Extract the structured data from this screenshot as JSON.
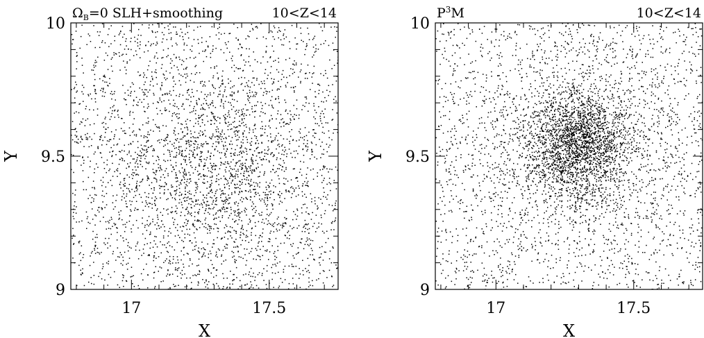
{
  "chart_data": [
    {
      "type": "scatter",
      "title_left": "Ω",
      "title_left_subscript": "B",
      "title_left_rest": "=0  SLH+smoothing",
      "title_right": "10<Z<14",
      "xlabel": "X",
      "ylabel": "Y",
      "xlim": [
        16.78,
        17.75
      ],
      "ylim": [
        9,
        10
      ],
      "xticks": [
        17,
        17.5
      ],
      "xtick_labels": [
        "17",
        "17.5"
      ],
      "yticks": [
        9,
        9.5,
        10
      ],
      "ytick_labels": [
        "9",
        "9.5",
        "10"
      ],
      "distribution": {
        "background_points": 2200,
        "cluster_points": 1500,
        "cluster_center": [
          17.3,
          9.45
        ],
        "cluster_sigma": [
          0.2,
          0.19
        ]
      }
    },
    {
      "type": "scatter",
      "title_left": "P",
      "title_left_superscript": "3",
      "title_left_rest": "M",
      "title_right": "10<Z<14",
      "xlabel": "X",
      "ylabel": "Y",
      "xlim": [
        16.78,
        17.75
      ],
      "ylim": [
        9,
        10
      ],
      "xticks": [
        17,
        17.5
      ],
      "xtick_labels": [
        "17",
        "17.5"
      ],
      "yticks": [
        9,
        9.5,
        10
      ],
      "ytick_labels": [
        "9",
        "9.5",
        "10"
      ],
      "distribution": {
        "background_points": 2100,
        "cluster_points": 1900,
        "cluster_center": [
          17.29,
          9.55
        ],
        "cluster_sigma": [
          0.09,
          0.1
        ],
        "halo_points": 900,
        "halo_sigma": [
          0.2,
          0.2
        ]
      }
    }
  ]
}
